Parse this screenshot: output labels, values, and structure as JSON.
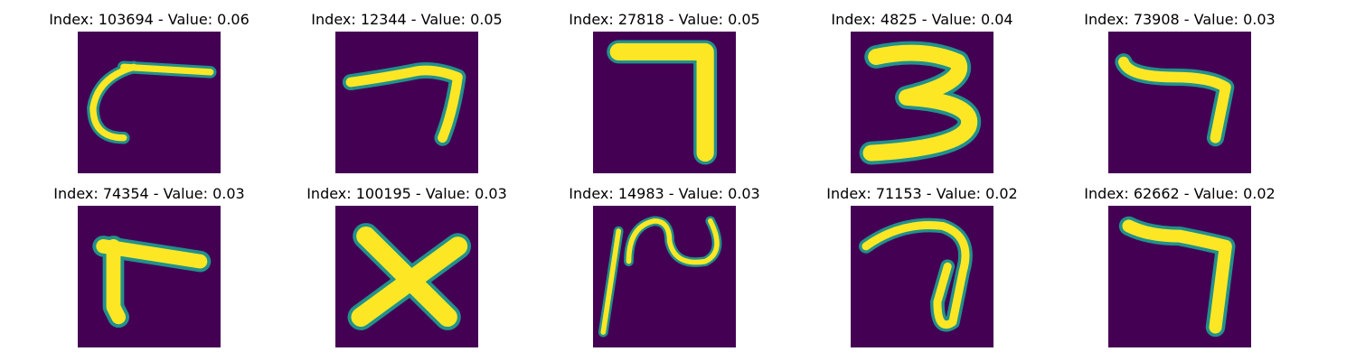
{
  "colors": {
    "background": "#440154",
    "glyph_edge": "#21918c",
    "glyph_core": "#fde725"
  },
  "panels": [
    {
      "title": "Index: 103694 - Value: 0.06"
    },
    {
      "title": "Index: 12344 - Value: 0.05"
    },
    {
      "title": "Index: 27818 - Value: 0.05"
    },
    {
      "title": "Index: 4825 - Value: 0.04"
    },
    {
      "title": "Index: 73908 - Value: 0.03"
    },
    {
      "title": "Index: 74354 - Value: 0.03"
    },
    {
      "title": "Index: 100195 - Value: 0.03"
    },
    {
      "title": "Index: 14983 - Value: 0.03"
    },
    {
      "title": "Index: 71153 - Value: 0.02"
    },
    {
      "title": "Index: 62662 - Value: 0.02"
    }
  ]
}
